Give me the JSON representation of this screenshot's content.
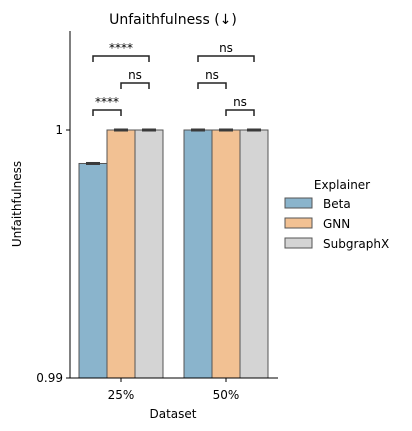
{
  "chart_data": {
    "type": "bar",
    "title": "Unfaithfulness (↓)",
    "xlabel": "Dataset",
    "ylabel": "Unfaithfulness",
    "categories": [
      "25%",
      "50%"
    ],
    "ylim": [
      0.99,
      1.0
    ],
    "yticks": [
      0.99,
      1.0
    ],
    "ytick_labels": [
      "0.99",
      "1"
    ],
    "series": [
      {
        "name": "Beta",
        "values": [
          0.99865,
          1.0
        ],
        "errors": [
          2e-05,
          2e-05
        ],
        "color": "#8ab4cc"
      },
      {
        "name": "GNN",
        "values": [
          1.0,
          1.0
        ],
        "errors": [
          2e-05,
          2e-05
        ],
        "color": "#f2c193"
      },
      {
        "name": "SubgraphX",
        "values": [
          1.0,
          1.0
        ],
        "errors": [
          2e-05,
          2e-05
        ],
        "color": "#d4d4d4"
      }
    ],
    "legend": {
      "title": "Explainer",
      "placement": "right"
    },
    "significance": [
      {
        "category": "25%",
        "from": "Beta",
        "to": "GNN",
        "label": "****",
        "level": 0
      },
      {
        "category": "25%",
        "from": "GNN",
        "to": "SubgraphX",
        "label": "ns",
        "level": 1
      },
      {
        "category": "25%",
        "from": "Beta",
        "to": "SubgraphX",
        "label": "****",
        "level": 2
      },
      {
        "category": "50%",
        "from": "GNN",
        "to": "SubgraphX",
        "label": "ns",
        "level": 0
      },
      {
        "category": "50%",
        "from": "Beta",
        "to": "GNN",
        "label": "ns",
        "level": 1
      },
      {
        "category": "50%",
        "from": "Beta",
        "to": "SubgraphX",
        "label": "ns",
        "level": 2
      }
    ]
  }
}
